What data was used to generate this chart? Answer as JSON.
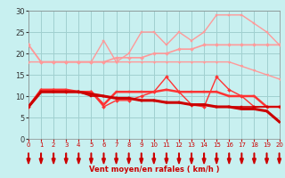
{
  "x": [
    0,
    1,
    2,
    3,
    4,
    5,
    6,
    7,
    8,
    9,
    10,
    11,
    12,
    13,
    14,
    15,
    16,
    17,
    18,
    19,
    20
  ],
  "series": [
    {
      "name": "line_salmon1",
      "color": "#ff9999",
      "lw": 1.2,
      "marker": "D",
      "markersize": 2.0,
      "y": [
        22,
        18,
        18,
        18,
        18,
        18,
        18,
        19,
        19,
        19,
        20,
        20,
        21,
        21,
        22,
        22,
        22,
        22,
        22,
        22,
        22
      ]
    },
    {
      "name": "line_salmon2",
      "color": "#ff9999",
      "lw": 1.0,
      "marker": "s",
      "markersize": 2.0,
      "y": [
        22,
        18,
        18,
        18,
        18,
        18,
        23,
        18,
        20,
        25,
        25,
        22,
        25,
        23,
        25,
        29,
        29,
        29,
        27,
        25,
        22
      ]
    },
    {
      "name": "line_salmon3",
      "color": "#ff9999",
      "lw": 1.0,
      "marker": "v",
      "markersize": 2.0,
      "y": [
        18,
        18,
        18,
        18,
        18,
        18,
        18,
        18,
        18,
        18,
        18,
        18,
        18,
        18,
        18,
        18,
        18,
        17,
        16,
        15,
        14
      ]
    },
    {
      "name": "line_red1",
      "color": "#ff3333",
      "lw": 1.8,
      "marker": "s",
      "markersize": 2.0,
      "y": [
        7.5,
        11.5,
        11.5,
        11.5,
        11,
        11,
        8,
        11,
        11,
        11,
        11,
        11.5,
        11,
        11,
        11,
        11,
        10,
        10,
        10,
        7.5,
        7.5
      ]
    },
    {
      "name": "line_red2",
      "color": "#ff3333",
      "lw": 1.0,
      "marker": "D",
      "markersize": 2.0,
      "y": [
        7.5,
        11.5,
        11.5,
        11,
        11,
        11,
        7.5,
        9,
        9,
        10,
        11,
        14.5,
        11,
        8,
        7.5,
        14.5,
        11.5,
        10,
        7.5,
        7.5,
        7.5
      ]
    },
    {
      "name": "line_darkred1",
      "color": "#cc0000",
      "lw": 2.2,
      "marker": "s",
      "markersize": 2.0,
      "y": [
        7.5,
        11,
        11,
        11,
        11,
        10.5,
        10,
        9.5,
        9.5,
        9,
        9,
        8.5,
        8.5,
        8,
        8,
        7.5,
        7.5,
        7,
        7,
        6.5,
        4
      ]
    },
    {
      "name": "line_darkred2",
      "color": "#cc0000",
      "lw": 1.2,
      "marker": "s",
      "markersize": 2.0,
      "y": [
        7.5,
        11,
        11,
        11,
        11,
        10,
        10,
        9.5,
        9.5,
        9,
        9,
        8.5,
        8.5,
        8,
        8,
        7.5,
        7.5,
        7.5,
        7.5,
        7.5,
        7.5
      ]
    }
  ],
  "xlabel": "Vent moyen/en rafales ( km/h )",
  "xlim": [
    0,
    20
  ],
  "ylim": [
    0,
    30
  ],
  "yticks": [
    0,
    5,
    10,
    15,
    20,
    25,
    30
  ],
  "xticks": [
    0,
    1,
    2,
    3,
    4,
    5,
    6,
    7,
    8,
    9,
    10,
    11,
    12,
    13,
    14,
    15,
    16,
    17,
    18,
    19,
    20
  ],
  "bg_color": "#c8f0f0",
  "grid_color": "#a0d0d0",
  "arrow_color": "#cc0000"
}
